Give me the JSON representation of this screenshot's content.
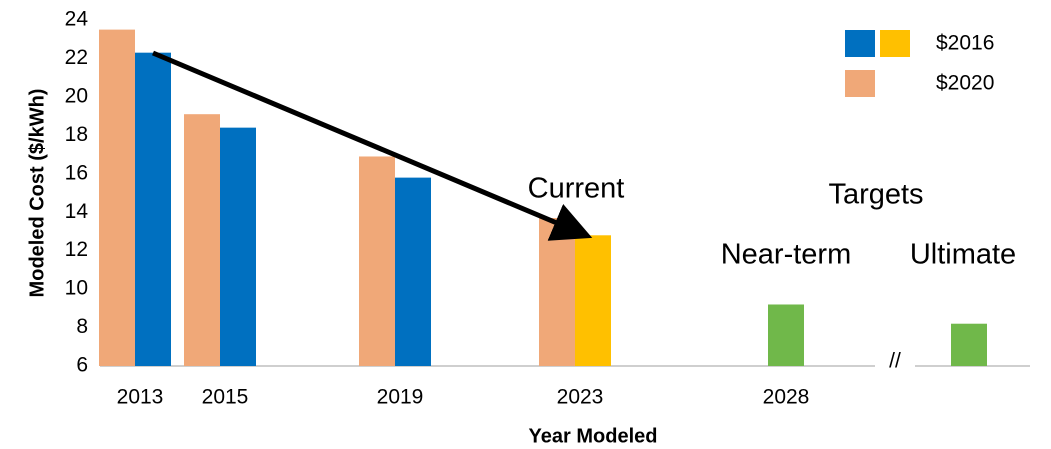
{
  "chart_data": {
    "type": "bar",
    "categories": [
      "2013",
      "2015",
      "2019",
      "2023",
      "2028",
      null
    ],
    "series": [
      {
        "name": "$2020",
        "color": "#f0a878",
        "values": [
          23.5,
          19.1,
          16.9,
          13.7,
          null,
          null
        ]
      },
      {
        "name": "$2016",
        "color": "#0070c0",
        "colors": [
          "#0070c0",
          "#0070c0",
          "#0070c0",
          "#ffc000",
          "#70b84a",
          "#70b84a"
        ],
        "legend_colors": [
          "#0070c0",
          "#ffc000"
        ],
        "values": [
          22.3,
          18.4,
          15.8,
          12.8,
          9.2,
          8.2
        ]
      }
    ],
    "x_label": "Year Modeled",
    "y_label": "Modeled Cost ($/kWh)",
    "ylim": [
      6,
      24
    ],
    "yticks": [
      6,
      8,
      10,
      12,
      14,
      16,
      18,
      20,
      22,
      24
    ],
    "annotations": [
      "Current",
      "Targets",
      "Near-term",
      "Ultimate",
      "//"
    ],
    "legend": "upper right"
  }
}
